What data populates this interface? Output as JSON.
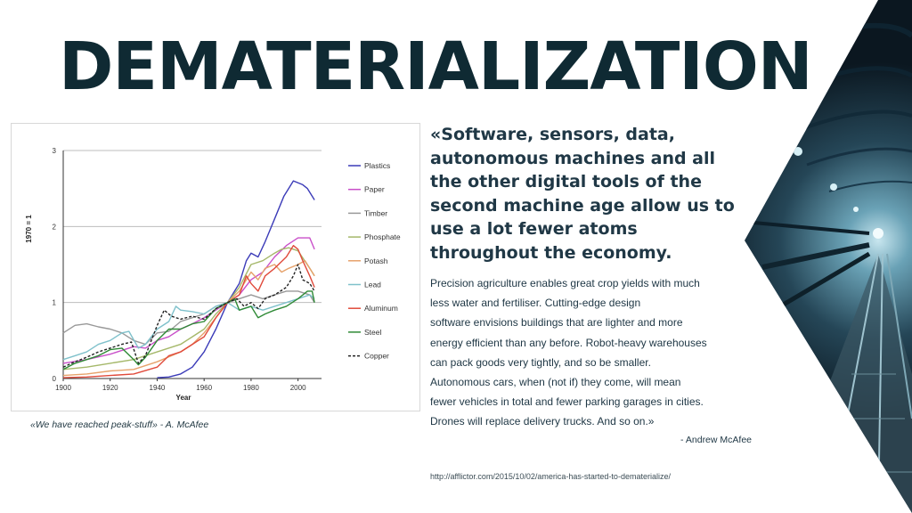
{
  "slide": {
    "title": "DEMATERIALIZATION",
    "caption": "«We have reached peak-stuff» - A. McAfee",
    "quote": "«Software, sensors, data, autonomous machines and all the other digital tools of the second machine age allow us to use a lot fewer atoms throughout the economy.",
    "body_lines": [
      "Precision agriculture enables great crop yields with much",
      "less water and fertiliser. Cutting-edge design",
      "software envisions buildings that are lighter and more",
      "energy efficient than any before. Robot-heavy warehouses",
      "can pack goods very tightly, and so be smaller.",
      "Autonomous cars, when (not if) they come, will mean",
      "fewer vehicles in total and fewer parking garages in cities.",
      "Drones will replace delivery trucks. And so on.»"
    ],
    "author": "- Andrew McAfee",
    "url": "http://afflictor.com/2015/10/02/america-has-started-to-dematerialize/",
    "photo_icon": "tunnel-photo"
  },
  "chart_data": {
    "type": "line",
    "xlabel": "Year",
    "ylabel": "1970 = 1",
    "xlim": [
      1900,
      2010
    ],
    "ylim": [
      0,
      3
    ],
    "x_ticks": [
      "1900",
      "1920",
      "1940",
      "1960",
      "1980",
      "2000"
    ],
    "y_ticks": [
      "0",
      "1",
      "2",
      "3"
    ],
    "grid": "horizontal",
    "legend_position": "right",
    "series": [
      {
        "name": "Plastics",
        "color": "#3b3bb8",
        "dash": false,
        "points": [
          [
            1940,
            0.01
          ],
          [
            1945,
            0.02
          ],
          [
            1950,
            0.06
          ],
          [
            1955,
            0.15
          ],
          [
            1960,
            0.35
          ],
          [
            1965,
            0.65
          ],
          [
            1970,
            1.0
          ],
          [
            1975,
            1.25
          ],
          [
            1978,
            1.55
          ],
          [
            1980,
            1.65
          ],
          [
            1983,
            1.6
          ],
          [
            1986,
            1.8
          ],
          [
            1990,
            2.1
          ],
          [
            1994,
            2.4
          ],
          [
            1998,
            2.6
          ],
          [
            2002,
            2.55
          ],
          [
            2004,
            2.5
          ],
          [
            2006,
            2.4
          ],
          [
            2007,
            2.35
          ]
        ]
      },
      {
        "name": "Paper",
        "color": "#c94fc9",
        "dash": false,
        "points": [
          [
            1900,
            0.2
          ],
          [
            1910,
            0.25
          ],
          [
            1920,
            0.32
          ],
          [
            1930,
            0.42
          ],
          [
            1935,
            0.4
          ],
          [
            1940,
            0.5
          ],
          [
            1945,
            0.55
          ],
          [
            1950,
            0.65
          ],
          [
            1955,
            0.72
          ],
          [
            1960,
            0.8
          ],
          [
            1965,
            0.9
          ],
          [
            1970,
            1.0
          ],
          [
            1975,
            1.1
          ],
          [
            1980,
            1.3
          ],
          [
            1985,
            1.4
          ],
          [
            1990,
            1.6
          ],
          [
            1995,
            1.75
          ],
          [
            2000,
            1.85
          ],
          [
            2005,
            1.85
          ],
          [
            2007,
            1.7
          ]
        ]
      },
      {
        "name": "Timber",
        "color": "#999999",
        "dash": false,
        "points": [
          [
            1900,
            0.6
          ],
          [
            1905,
            0.7
          ],
          [
            1910,
            0.72
          ],
          [
            1915,
            0.68
          ],
          [
            1920,
            0.65
          ],
          [
            1925,
            0.6
          ],
          [
            1930,
            0.5
          ],
          [
            1935,
            0.45
          ],
          [
            1940,
            0.6
          ],
          [
            1945,
            0.62
          ],
          [
            1950,
            0.75
          ],
          [
            1955,
            0.8
          ],
          [
            1960,
            0.85
          ],
          [
            1965,
            0.95
          ],
          [
            1970,
            1.0
          ],
          [
            1975,
            1.05
          ],
          [
            1980,
            1.1
          ],
          [
            1985,
            1.05
          ],
          [
            1990,
            1.1
          ],
          [
            1995,
            1.15
          ],
          [
            2000,
            1.15
          ],
          [
            2005,
            1.1
          ],
          [
            2007,
            1.0
          ]
        ]
      },
      {
        "name": "Phosphate",
        "color": "#a5b86a",
        "dash": false,
        "points": [
          [
            1900,
            0.12
          ],
          [
            1910,
            0.15
          ],
          [
            1920,
            0.2
          ],
          [
            1930,
            0.25
          ],
          [
            1940,
            0.35
          ],
          [
            1950,
            0.45
          ],
          [
            1955,
            0.55
          ],
          [
            1960,
            0.65
          ],
          [
            1965,
            0.85
          ],
          [
            1970,
            1.0
          ],
          [
            1975,
            1.2
          ],
          [
            1980,
            1.5
          ],
          [
            1985,
            1.55
          ],
          [
            1990,
            1.65
          ],
          [
            1993,
            1.7
          ],
          [
            1996,
            1.72
          ],
          [
            2000,
            1.68
          ],
          [
            2005,
            1.45
          ],
          [
            2007,
            1.35
          ]
        ]
      },
      {
        "name": "Potash",
        "color": "#e6a26b",
        "dash": false,
        "points": [
          [
            1900,
            0.04
          ],
          [
            1910,
            0.06
          ],
          [
            1920,
            0.1
          ],
          [
            1930,
            0.12
          ],
          [
            1940,
            0.22
          ],
          [
            1950,
            0.35
          ],
          [
            1955,
            0.45
          ],
          [
            1960,
            0.6
          ],
          [
            1965,
            0.8
          ],
          [
            1970,
            1.0
          ],
          [
            1975,
            1.15
          ],
          [
            1980,
            1.4
          ],
          [
            1983,
            1.3
          ],
          [
            1986,
            1.45
          ],
          [
            1990,
            1.5
          ],
          [
            1993,
            1.4
          ],
          [
            1996,
            1.45
          ],
          [
            2000,
            1.5
          ],
          [
            2003,
            1.55
          ],
          [
            2005,
            1.45
          ],
          [
            2007,
            1.35
          ]
        ]
      },
      {
        "name": "Lead",
        "color": "#7fc1cb",
        "dash": false,
        "points": [
          [
            1900,
            0.25
          ],
          [
            1905,
            0.3
          ],
          [
            1910,
            0.35
          ],
          [
            1915,
            0.45
          ],
          [
            1920,
            0.5
          ],
          [
            1925,
            0.6
          ],
          [
            1928,
            0.62
          ],
          [
            1932,
            0.4
          ],
          [
            1935,
            0.45
          ],
          [
            1940,
            0.65
          ],
          [
            1945,
            0.75
          ],
          [
            1948,
            0.95
          ],
          [
            1950,
            0.9
          ],
          [
            1955,
            0.88
          ],
          [
            1960,
            0.85
          ],
          [
            1965,
            0.95
          ],
          [
            1970,
            1.0
          ],
          [
            1975,
            0.9
          ],
          [
            1980,
            0.95
          ],
          [
            1985,
            0.9
          ],
          [
            1990,
            0.95
          ],
          [
            1995,
            1.0
          ],
          [
            2000,
            1.05
          ],
          [
            2005,
            1.1
          ],
          [
            2007,
            1.05
          ]
        ]
      },
      {
        "name": "Aluminum",
        "color": "#e04a3b",
        "dash": false,
        "points": [
          [
            1900,
            0.01
          ],
          [
            1910,
            0.02
          ],
          [
            1920,
            0.04
          ],
          [
            1930,
            0.06
          ],
          [
            1940,
            0.15
          ],
          [
            1945,
            0.3
          ],
          [
            1950,
            0.35
          ],
          [
            1955,
            0.45
          ],
          [
            1960,
            0.55
          ],
          [
            1965,
            0.8
          ],
          [
            1970,
            1.0
          ],
          [
            1975,
            1.1
          ],
          [
            1978,
            1.35
          ],
          [
            1980,
            1.25
          ],
          [
            1983,
            1.15
          ],
          [
            1986,
            1.35
          ],
          [
            1990,
            1.45
          ],
          [
            1995,
            1.6
          ],
          [
            1998,
            1.75
          ],
          [
            2000,
            1.7
          ],
          [
            2002,
            1.55
          ],
          [
            2005,
            1.35
          ],
          [
            2007,
            1.2
          ]
        ]
      },
      {
        "name": "Steel",
        "color": "#2f8a36",
        "dash": false,
        "points": [
          [
            1900,
            0.12
          ],
          [
            1905,
            0.2
          ],
          [
            1910,
            0.25
          ],
          [
            1915,
            0.3
          ],
          [
            1920,
            0.38
          ],
          [
            1925,
            0.4
          ],
          [
            1930,
            0.25
          ],
          [
            1932,
            0.18
          ],
          [
            1935,
            0.28
          ],
          [
            1940,
            0.5
          ],
          [
            1945,
            0.65
          ],
          [
            1950,
            0.65
          ],
          [
            1955,
            0.72
          ],
          [
            1960,
            0.75
          ],
          [
            1965,
            0.92
          ],
          [
            1970,
            1.0
          ],
          [
            1973,
            1.05
          ],
          [
            1975,
            0.9
          ],
          [
            1980,
            0.95
          ],
          [
            1983,
            0.8
          ],
          [
            1986,
            0.85
          ],
          [
            1990,
            0.9
          ],
          [
            1995,
            0.95
          ],
          [
            2000,
            1.05
          ],
          [
            2004,
            1.15
          ],
          [
            2006,
            1.15
          ],
          [
            2007,
            1.0
          ]
        ]
      },
      {
        "name": "Copper",
        "color": "#222222",
        "dash": true,
        "points": [
          [
            1900,
            0.15
          ],
          [
            1905,
            0.22
          ],
          [
            1910,
            0.28
          ],
          [
            1915,
            0.35
          ],
          [
            1920,
            0.4
          ],
          [
            1925,
            0.45
          ],
          [
            1929,
            0.48
          ],
          [
            1932,
            0.2
          ],
          [
            1935,
            0.3
          ],
          [
            1940,
            0.7
          ],
          [
            1943,
            0.9
          ],
          [
            1946,
            0.82
          ],
          [
            1950,
            0.78
          ],
          [
            1955,
            0.82
          ],
          [
            1960,
            0.78
          ],
          [
            1965,
            0.92
          ],
          [
            1970,
            1.0
          ],
          [
            1974,
            1.05
          ],
          [
            1977,
            0.95
          ],
          [
            1980,
            1.0
          ],
          [
            1983,
            0.92
          ],
          [
            1986,
            1.05
          ],
          [
            1990,
            1.1
          ],
          [
            1995,
            1.2
          ],
          [
            1998,
            1.35
          ],
          [
            2000,
            1.5
          ],
          [
            2002,
            1.3
          ],
          [
            2005,
            1.25
          ],
          [
            2007,
            1.15
          ]
        ]
      }
    ]
  }
}
